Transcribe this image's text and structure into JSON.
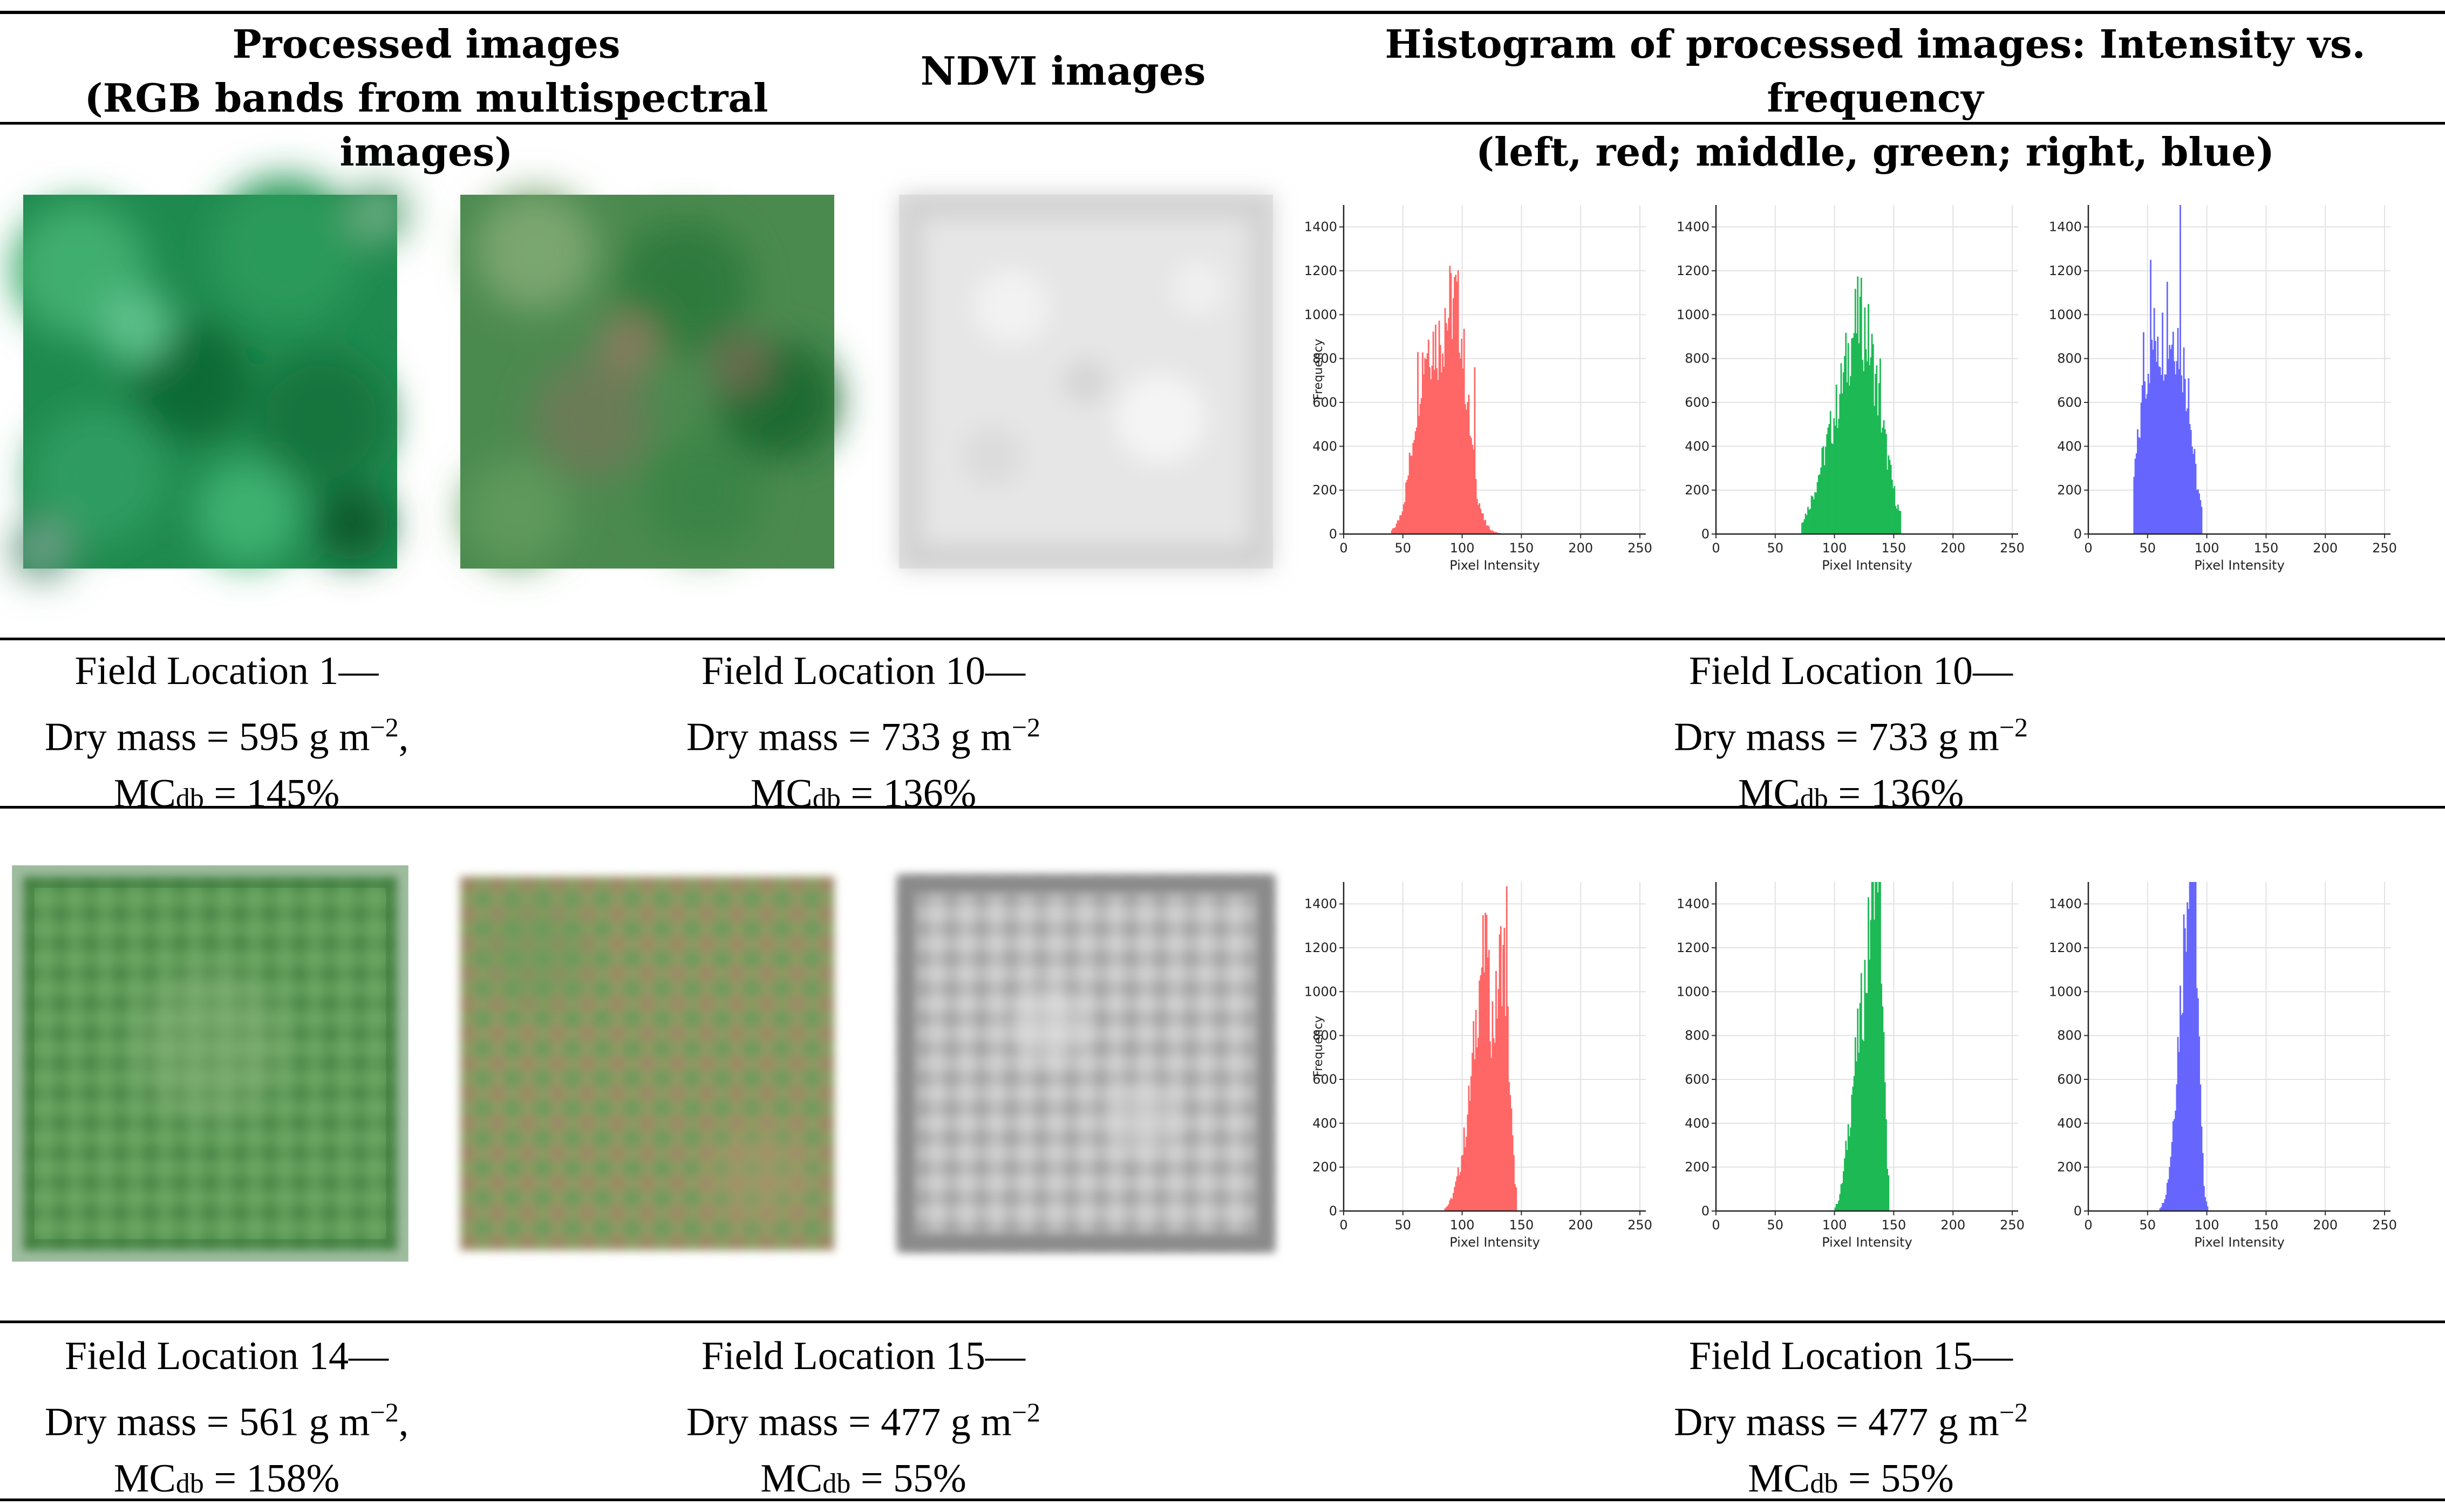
{
  "header": {
    "col1_line1": "Processed images",
    "col1_line2": "(RGB bands from multispectral images)",
    "col2": "NDVI images",
    "col3_line1": "Histogram of processed images: Intensity vs. frequency",
    "col3_line2": "(left, red; middle, green; right, blue)"
  },
  "rows": [
    {
      "captions": [
        {
          "line1": "Field Location 1—",
          "mass": "Dry mass = 595 g m",
          "exp": "−2",
          "tail": ",",
          "mc_pre": "MC",
          "mc_sub": "db",
          "mc_val": " = 145%"
        },
        {
          "line1": "Field Location 10—",
          "mass": "Dry mass = 733 g m",
          "exp": "−2",
          "tail": "",
          "mc_pre": "MC",
          "mc_sub": "db",
          "mc_val": " = 136%"
        },
        {
          "line1": "Field Location 10—",
          "mass": "Dry mass = 733 g m",
          "exp": "−2",
          "tail": "",
          "mc_pre": "MC",
          "mc_sub": "db",
          "mc_val": " = 136%"
        }
      ]
    },
    {
      "captions": [
        {
          "line1": "Field Location 14—",
          "mass": "Dry mass = 561 g m",
          "exp": "−2",
          "tail": ",",
          "mc_pre": "MC",
          "mc_sub": "db",
          "mc_val": " = 158%"
        },
        {
          "line1": "Field Location 15—",
          "mass": "Dry mass = 477 g m",
          "exp": "−2",
          "tail": "",
          "mc_pre": "MC",
          "mc_sub": "db",
          "mc_val": " = 55%"
        },
        {
          "line1": "Field Location 15—",
          "mass": "Dry mass = 477 g m",
          "exp": "−2",
          "tail": "",
          "mc_pre": "MC",
          "mc_sub": "db",
          "mc_val": " = 55%"
        }
      ]
    }
  ],
  "chart_data": [
    {
      "type": "bar",
      "name": "row1-red",
      "color": "#ff6666",
      "xlabel": "Pixel Intensity",
      "ylabel": "Frequency",
      "xlim": [
        0,
        255
      ],
      "ylim": [
        0,
        1500
      ],
      "xticks": [
        0,
        50,
        100,
        150,
        200,
        250
      ],
      "yticks": [
        0,
        200,
        400,
        600,
        800,
        1000,
        1200,
        1400
      ],
      "dist": {
        "lo": 40,
        "hi": 135,
        "peaks": [
          [
            68,
            600,
            10
          ],
          [
            95,
            660,
            9
          ],
          [
            85,
            450,
            15
          ]
        ],
        "spikes": [
          [
            62,
            830
          ],
          [
            72,
            760
          ],
          [
            85,
            1030
          ],
          [
            90,
            720
          ],
          [
            98,
            800
          ],
          [
            110,
            760
          ],
          [
            80,
            690
          ]
        ]
      }
    },
    {
      "type": "bar",
      "name": "row1-green",
      "color": "#1db954",
      "xlabel": "Pixel Intensity",
      "ylabel": "",
      "xlim": [
        0,
        255
      ],
      "ylim": [
        0,
        1500
      ],
      "xticks": [
        0,
        50,
        100,
        150,
        200,
        250
      ],
      "yticks": [
        0,
        200,
        400,
        600,
        800,
        1000,
        1200,
        1400
      ],
      "dist": {
        "lo": 72,
        "hi": 155,
        "peaks": [
          [
            100,
            440,
            14
          ],
          [
            132,
            560,
            12
          ],
          [
            118,
            480,
            10
          ]
        ],
        "spikes": [
          [
            113,
            720
          ],
          [
            128,
            740
          ],
          [
            138,
            800
          ],
          [
            122,
            650
          ]
        ]
      }
    },
    {
      "type": "bar",
      "name": "row1-blue",
      "color": "#6666ff",
      "xlabel": "Pixel Intensity",
      "ylabel": "",
      "xlim": [
        0,
        255
      ],
      "ylim": [
        0,
        1500
      ],
      "xticks": [
        0,
        50,
        100,
        150,
        200,
        250
      ],
      "yticks": [
        0,
        200,
        400,
        600,
        800,
        1000,
        1200,
        1400
      ],
      "dist": {
        "lo": 38,
        "hi": 95,
        "peaks": [
          [
            50,
            600,
            9
          ],
          [
            78,
            640,
            9
          ],
          [
            64,
            520,
            10
          ]
        ],
        "spikes": [
          [
            52,
            1250
          ],
          [
            66,
            1150
          ],
          [
            77,
            1500
          ],
          [
            46,
            920
          ],
          [
            58,
            900
          ],
          [
            84,
            710
          ]
        ]
      }
    },
    {
      "type": "bar",
      "name": "row2-red",
      "color": "#ff6666",
      "xlabel": "Pixel Intensity",
      "ylabel": "Frequency",
      "xlim": [
        0,
        255
      ],
      "ylim": [
        0,
        1500
      ],
      "xticks": [
        0,
        50,
        100,
        150,
        200,
        250
      ],
      "yticks": [
        0,
        200,
        400,
        600,
        800,
        1000,
        1200,
        1400
      ],
      "dist": {
        "lo": 85,
        "hi": 145,
        "peaks": [
          [
            118,
            1050,
            7
          ],
          [
            134,
            1100,
            5
          ],
          [
            105,
            300,
            8
          ]
        ],
        "spikes": [
          [
            120,
            1350
          ],
          [
            137,
            1480
          ]
        ]
      }
    },
    {
      "type": "bar",
      "name": "row2-green",
      "color": "#1db954",
      "xlabel": "Pixel Intensity",
      "ylabel": "",
      "xlim": [
        0,
        255
      ],
      "ylim": [
        0,
        1500
      ],
      "xticks": [
        0,
        50,
        100,
        150,
        200,
        250
      ],
      "yticks": [
        0,
        200,
        400,
        600,
        800,
        1000,
        1200,
        1400
      ],
      "dist": {
        "lo": 100,
        "hi": 145,
        "peaks": [
          [
            128,
            1000,
            7
          ],
          [
            136,
            1200,
            4
          ],
          [
            115,
            400,
            6
          ]
        ],
        "spikes": [
          [
            137,
            1480
          ],
          [
            133,
            1300
          ]
        ]
      }
    },
    {
      "type": "bar",
      "name": "row2-blue",
      "color": "#6666ff",
      "xlabel": "Pixel Intensity",
      "ylabel": "",
      "xlim": [
        0,
        255
      ],
      "ylim": [
        0,
        1500
      ],
      "xticks": [
        0,
        50,
        100,
        150,
        200,
        250
      ],
      "yticks": [
        0,
        200,
        400,
        600,
        800,
        1000,
        1200,
        1400
      ],
      "dist": {
        "lo": 60,
        "hi": 100,
        "peaks": [
          [
            82,
            900,
            6
          ],
          [
            88,
            1200,
            4
          ],
          [
            75,
            300,
            6
          ]
        ],
        "spikes": [
          [
            88,
            1480
          ],
          [
            86,
            1420
          ]
        ]
      }
    }
  ]
}
